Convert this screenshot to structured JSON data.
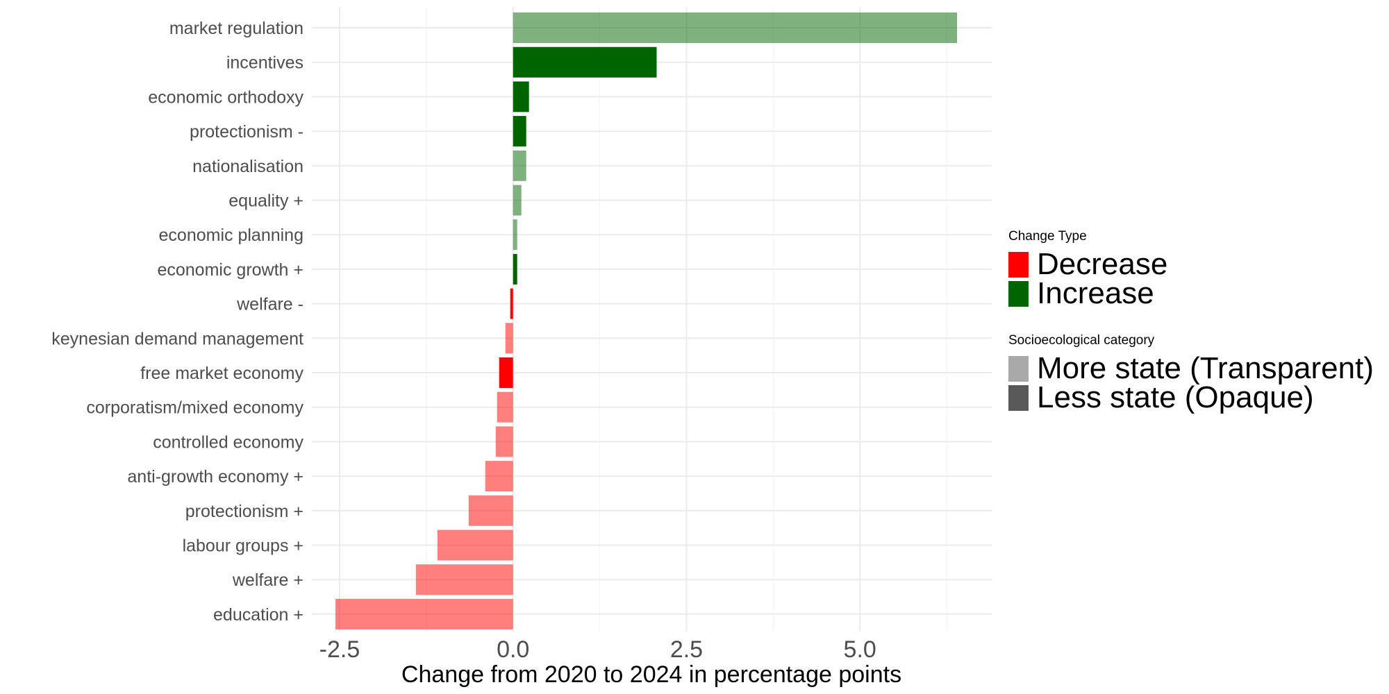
{
  "chart_data": {
    "type": "bar",
    "orientation": "horizontal",
    "xlabel": "Change from 2020 to 2024 in percentage points",
    "ylabel": "",
    "xlim": [
      -2.9,
      6.9
    ],
    "xticks": [
      -2.5,
      0.0,
      2.5,
      5.0
    ],
    "xtick_labels": [
      "-2.5",
      "0.0",
      "2.5",
      "5.0"
    ],
    "grid": true,
    "categories": [
      "market regulation",
      "incentives",
      "economic orthodoxy",
      "protectionism -",
      "nationalisation",
      "equality +",
      "economic planning",
      "economic growth +",
      "welfare -",
      "keynesian demand management",
      "free market economy",
      "corporatism/mixed economy",
      "controlled economy",
      "anti-growth economy +",
      "protectionism +",
      "labour groups +",
      "welfare +",
      "education +"
    ],
    "values": [
      6.4,
      2.07,
      0.23,
      0.19,
      0.19,
      0.12,
      0.06,
      0.06,
      -0.04,
      -0.11,
      -0.2,
      -0.23,
      -0.25,
      -0.4,
      -0.64,
      -1.09,
      -1.4,
      -2.56
    ],
    "change_type": [
      "Increase",
      "Increase",
      "Increase",
      "Increase",
      "Increase",
      "Increase",
      "Increase",
      "Increase",
      "Decrease",
      "Decrease",
      "Decrease",
      "Decrease",
      "Decrease",
      "Decrease",
      "Decrease",
      "Decrease",
      "Decrease",
      "Decrease"
    ],
    "category_group": [
      "More state (Transparent)",
      "Less state (Opaque)",
      "Less state (Opaque)",
      "Less state (Opaque)",
      "More state (Transparent)",
      "More state (Transparent)",
      "More state (Transparent)",
      "Less state (Opaque)",
      "Less state (Opaque)",
      "More state (Transparent)",
      "Less state (Opaque)",
      "More state (Transparent)",
      "More state (Transparent)",
      "More state (Transparent)",
      "More state (Transparent)",
      "More state (Transparent)",
      "More state (Transparent)",
      "More state (Transparent)"
    ],
    "colors": {
      "Decrease": "#ff0000",
      "Increase": "#006400"
    },
    "opacity": {
      "More state (Transparent)": 0.5,
      "Less state (Opaque)": 1.0
    },
    "legend": {
      "placement": "right",
      "change_type_title": "Change Type",
      "change_type_items": [
        {
          "label": "Decrease",
          "color": "#ff0000"
        },
        {
          "label": "Increase",
          "color": "#006400"
        }
      ],
      "category_title": "Socioecological category",
      "category_items": [
        {
          "label": "More state (Transparent)",
          "color": "#a9a9a9"
        },
        {
          "label": "Less state (Opaque)",
          "color": "#595959"
        }
      ]
    }
  }
}
